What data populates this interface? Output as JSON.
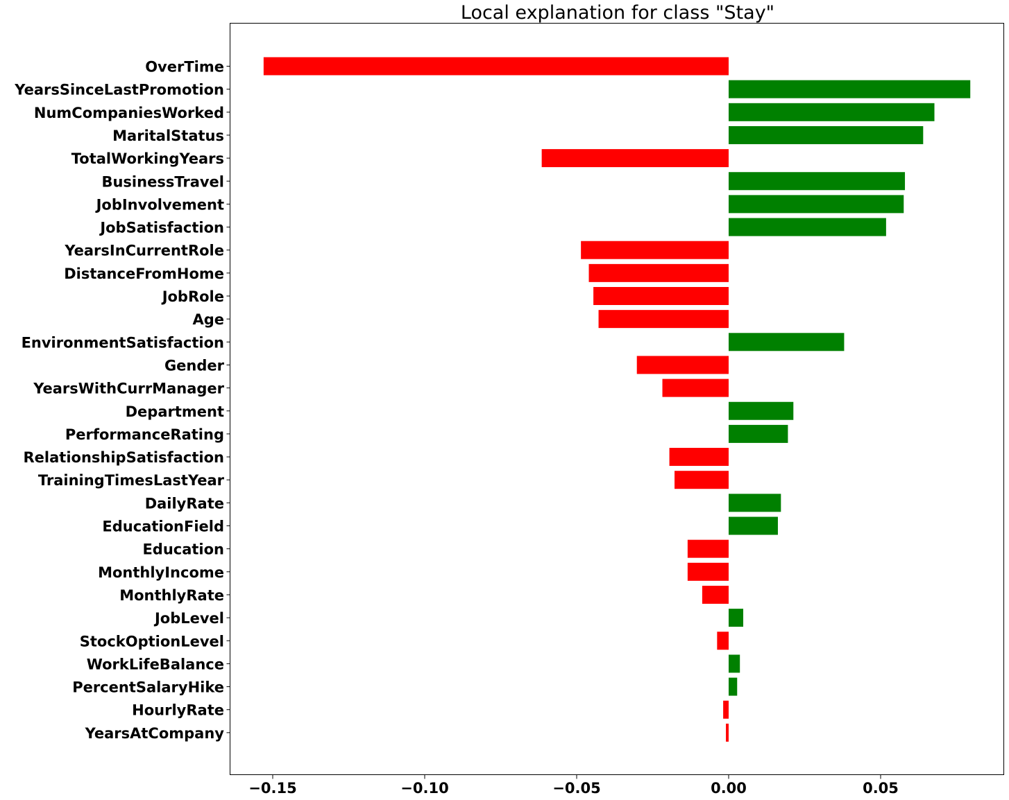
{
  "chart_data": {
    "type": "bar",
    "orientation": "horizontal",
    "title": "Local explanation for class \"Stay\"",
    "xlabel": "",
    "ylabel": "",
    "xlim": [
      -0.165,
      0.091
    ],
    "xticks": [
      -0.15,
      -0.1,
      -0.05,
      0.0,
      0.05
    ],
    "xtick_labels": [
      "−0.15",
      "−0.10",
      "−0.05",
      "0.00",
      "0.05"
    ],
    "grid": false,
    "colors": {
      "positive": "#008000",
      "negative": "#ff0000"
    },
    "categories": [
      "OverTime",
      "YearsSinceLastPromotion",
      "NumCompaniesWorked",
      "MaritalStatus",
      "TotalWorkingYears",
      "BusinessTravel",
      "JobInvolvement",
      "JobSatisfaction",
      "YearsInCurrentRole",
      "DistanceFromHome",
      "JobRole",
      "Age",
      "EnvironmentSatisfaction",
      "Gender",
      "YearsWithCurrManager",
      "Department",
      "PerformanceRating",
      "RelationshipSatisfaction",
      "TrainingTimesLastYear",
      "DailyRate",
      "EducationField",
      "Education",
      "MonthlyIncome",
      "MonthlyRate",
      "JobLevel",
      "StockOptionLevel",
      "WorkLifeBalance",
      "PercentSalaryHike",
      "HourlyRate",
      "YearsAtCompany"
    ],
    "values": [
      -0.153,
      0.0795,
      0.0677,
      0.064,
      -0.0615,
      0.058,
      0.0576,
      0.0518,
      -0.0486,
      -0.046,
      -0.0445,
      -0.0428,
      0.038,
      -0.0302,
      -0.0218,
      0.0213,
      0.0195,
      -0.0195,
      -0.0178,
      0.0172,
      0.0162,
      -0.0135,
      -0.0135,
      -0.0087,
      0.0048,
      -0.0038,
      0.0037,
      0.0028,
      -0.0018,
      -0.0009
    ]
  }
}
